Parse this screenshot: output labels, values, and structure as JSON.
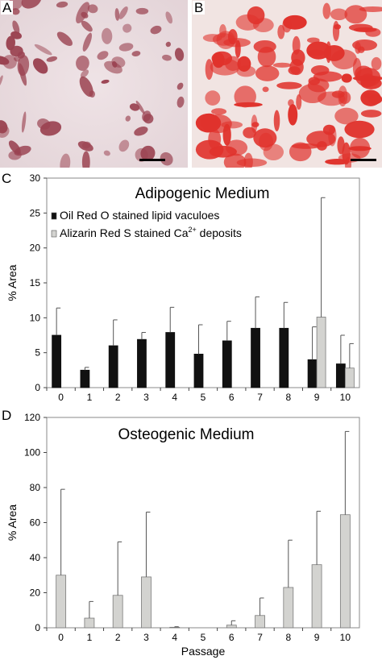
{
  "panels": {
    "a": {
      "letter": "A"
    },
    "b": {
      "letter": "B"
    },
    "c": {
      "letter": "C"
    },
    "d": {
      "letter": "D"
    }
  },
  "colors": {
    "oil_red_bar": "#111111",
    "alizarin_bar": "#d3d3d0",
    "adipocyte_stain": "#8e2a3a",
    "calcium_stain": "#e0322c"
  },
  "chart_data": [
    {
      "type": "bar",
      "title": "Adipogenic Medium",
      "xlabel": "",
      "ylabel": "% Area",
      "ylim": [
        0,
        30
      ],
      "yticks": [
        0,
        5,
        10,
        15,
        20,
        25,
        30
      ],
      "categories": [
        "0",
        "1",
        "2",
        "3",
        "4",
        "5",
        "6",
        "7",
        "8",
        "9",
        "10"
      ],
      "grid": false,
      "legend_position": "top-left",
      "series": [
        {
          "name": "Oil Red O stained lipid vaculoes",
          "color": "#111111",
          "values": [
            7.5,
            2.5,
            6.0,
            6.9,
            7.9,
            4.8,
            6.7,
            8.5,
            8.5,
            4.0,
            3.4
          ],
          "errors": [
            3.9,
            0.4,
            3.7,
            1.0,
            3.6,
            4.2,
            2.8,
            4.5,
            3.7,
            4.7,
            4.1
          ]
        },
        {
          "name": "Alizarin Red S stained Ca2+ deposits",
          "name_parts": {
            "main": "Alizarin Red S stained Ca",
            "sup": "2+",
            "tail": " deposits"
          },
          "color": "#d3d3d0",
          "values": [
            0,
            0,
            0,
            0,
            0,
            0,
            0,
            0,
            0,
            10.1,
            2.8
          ],
          "errors": [
            0,
            0,
            0,
            0,
            0,
            0,
            0,
            0,
            0,
            17.1,
            3.5
          ]
        }
      ]
    },
    {
      "type": "bar",
      "title": "Osteogenic Medium",
      "xlabel": "Passage",
      "ylabel": "% Area",
      "ylim": [
        0,
        120
      ],
      "yticks": [
        0,
        20,
        40,
        60,
        80,
        100,
        120
      ],
      "categories": [
        "0",
        "1",
        "2",
        "3",
        "4",
        "5",
        "6",
        "7",
        "8",
        "9",
        "10"
      ],
      "grid": false,
      "series": [
        {
          "color": "#d3d3d0",
          "values": [
            30,
            5.5,
            18.5,
            29,
            0.3,
            0,
            1.5,
            7,
            23,
            36,
            64.5
          ],
          "errors": [
            49,
            9.5,
            30.5,
            37,
            0.3,
            0,
            2.5,
            10,
            27,
            30.5,
            47.5
          ]
        }
      ]
    }
  ]
}
